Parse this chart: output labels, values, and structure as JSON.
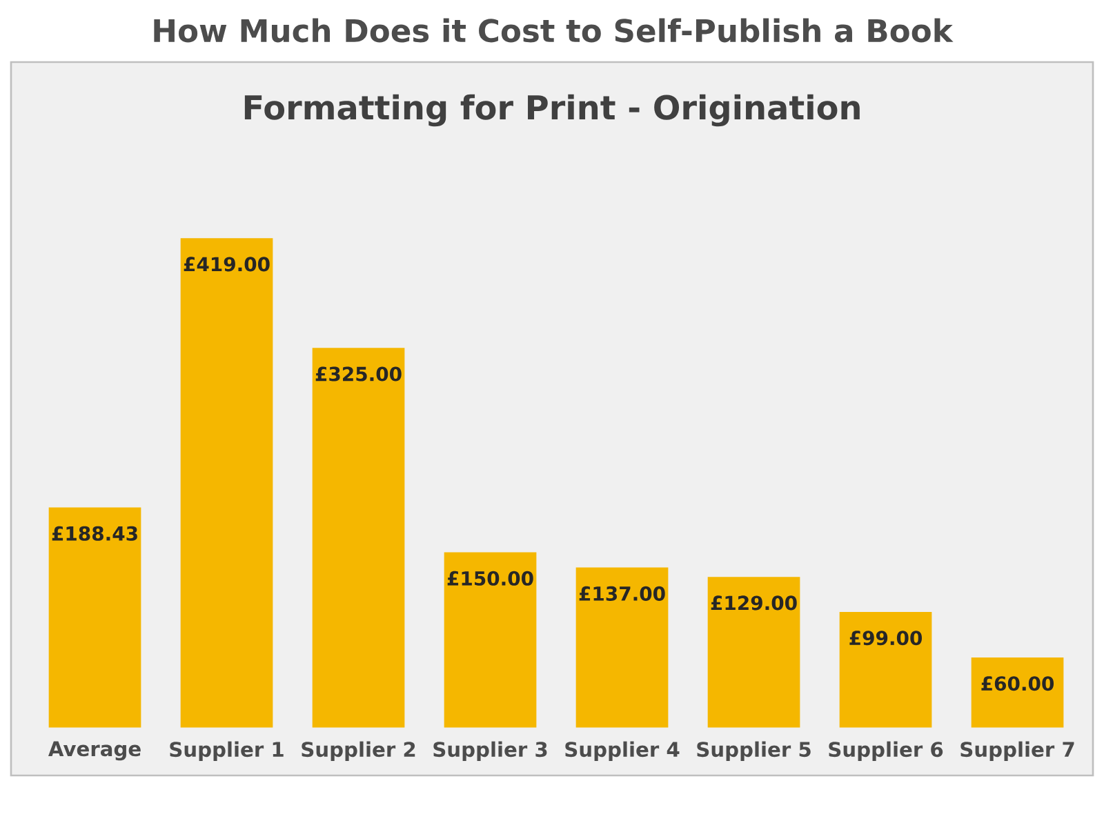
{
  "chart_data": {
    "type": "bar",
    "title": "How Much Does it Cost to Self-Publish a Book",
    "subtitle": "Formatting for Print - Origination",
    "categories": [
      "Average",
      "Supplier 1",
      "Supplier 2",
      "Supplier 3",
      "Supplier 4",
      "Supplier 5",
      "Supplier 6",
      "Supplier 7"
    ],
    "values": [
      188.43,
      419,
      325,
      150,
      137,
      129,
      99,
      60
    ],
    "value_labels": [
      "£188.43",
      "£419.00",
      "£325.00",
      "£150.00",
      "£137.00",
      "£129.00",
      "£99.00",
      "£60.00"
    ],
    "color": "#f5b700"
  }
}
